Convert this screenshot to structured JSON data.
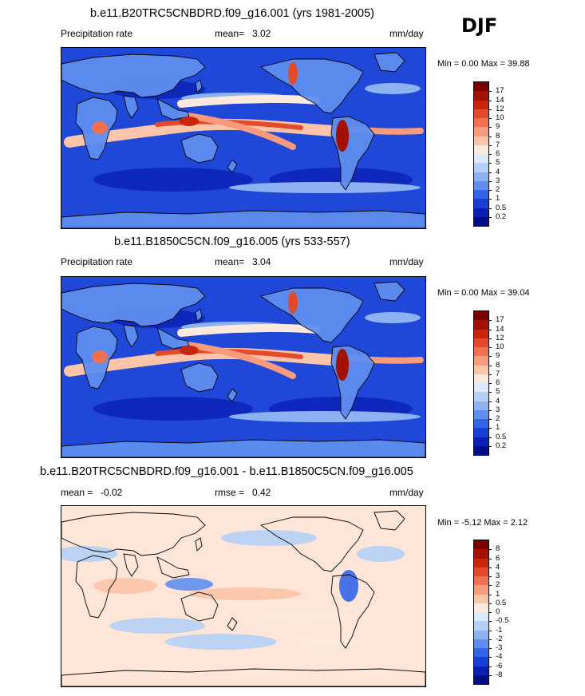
{
  "season": "DJF",
  "panels": [
    {
      "title": "b.e11.B20TRC5CNBDRD.f09_g16.001 (yrs 1981-2005)",
      "left_label": "Precipitation rate",
      "mean_label": "mean=",
      "mean_value": "3.02",
      "units": "mm/day",
      "minmax": "Min =   0.00 Max =  39.88",
      "colorbar": {
        "labels": [
          "17",
          "14",
          "12",
          "10",
          "9",
          "8",
          "7",
          "6",
          "5",
          "4",
          "3",
          "2",
          "1",
          "0.5",
          "0.2"
        ],
        "colors": [
          "#7a0000",
          "#a31100",
          "#c8250a",
          "#e24a2a",
          "#f07050",
          "#f89b7c",
          "#fcc4a8",
          "#fde9dc",
          "#dce8fb",
          "#b5cff6",
          "#8cb2f1",
          "#5f8ef0",
          "#3465e8",
          "#1a3fd8",
          "#0a20b4",
          "#000c88"
        ]
      },
      "ocean_color": "#1f47d8"
    },
    {
      "title": "b.e11.B1850C5CN.f09_g16.005 (yrs 533-557)",
      "left_label": "Precipitation rate",
      "mean_label": "mean=",
      "mean_value": "3.04",
      "units": "mm/day",
      "minmax": "Min =   0.00 Max =  39.04",
      "colorbar": {
        "labels": [
          "17",
          "14",
          "12",
          "10",
          "9",
          "8",
          "7",
          "6",
          "5",
          "4",
          "3",
          "2",
          "1",
          "0.5",
          "0.2"
        ],
        "colors": [
          "#7a0000",
          "#a31100",
          "#c8250a",
          "#e24a2a",
          "#f07050",
          "#f89b7c",
          "#fcc4a8",
          "#fde9dc",
          "#dce8fb",
          "#b5cff6",
          "#8cb2f1",
          "#5f8ef0",
          "#3465e8",
          "#1a3fd8",
          "#0a20b4",
          "#000c88"
        ]
      },
      "ocean_color": "#1f47d8"
    },
    {
      "title": "b.e11.B20TRC5CNBDRD.f09_g16.001 - b.e11.B1850C5CN.f09_g16.005",
      "left_label": "",
      "mean_label": "mean =",
      "mean_value": "-0.02",
      "rmse_label": "rmse =",
      "rmse_value": "0.42",
      "units": "mm/day",
      "minmax": "Min =  -5.12 Max =   2.12",
      "colorbar": {
        "labels": [
          "8",
          "6",
          "4",
          "3",
          "2",
          "1",
          "0.5",
          "0",
          "-0.5",
          "-1",
          "-2",
          "-3",
          "-4",
          "-6",
          "-8"
        ],
        "colors": [
          "#7a0000",
          "#a31100",
          "#c8250a",
          "#e24a2a",
          "#f07050",
          "#f89b7c",
          "#fcc4a8",
          "#fde9dc",
          "#dce8fb",
          "#b5cff6",
          "#8cb2f1",
          "#5f8ef0",
          "#3465e8",
          "#1a3fd8",
          "#0a20b4",
          "#000c88"
        ]
      },
      "ocean_color": "#fde6d8"
    }
  ]
}
